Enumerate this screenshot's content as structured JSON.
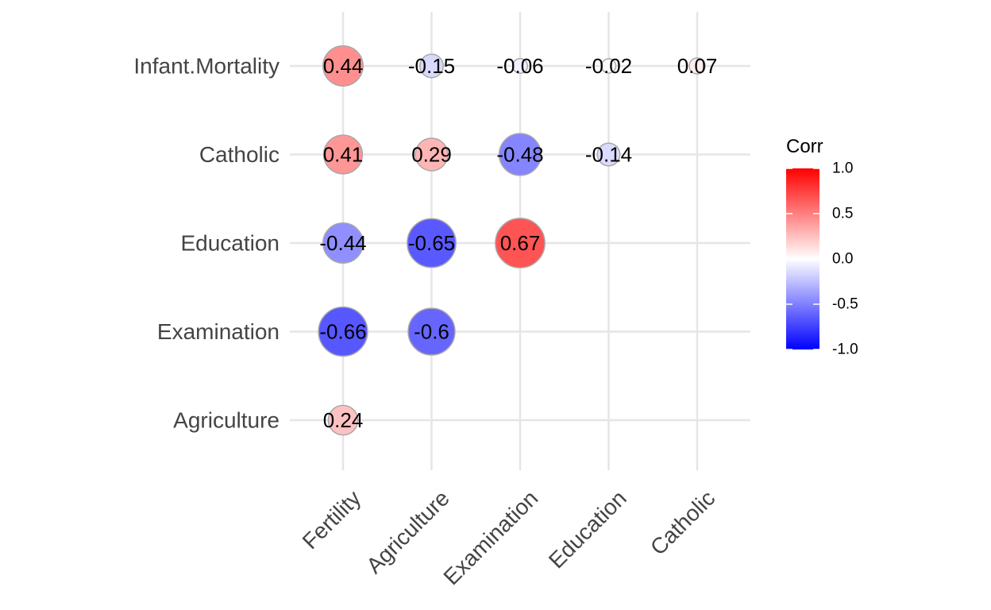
{
  "chart_data": {
    "type": "heatmap",
    "subtype": "correlation circles (lower triangle)",
    "x_categories": [
      "Fertility",
      "Agriculture",
      "Examination",
      "Education",
      "Catholic"
    ],
    "y_categories": [
      "Agriculture",
      "Examination",
      "Education",
      "Catholic",
      "Infant.Mortality"
    ],
    "cells": [
      {
        "x": "Fertility",
        "y": "Agriculture",
        "value": 0.24,
        "label": "0.24"
      },
      {
        "x": "Fertility",
        "y": "Examination",
        "value": -0.66,
        "label": "-0.66"
      },
      {
        "x": "Agriculture",
        "y": "Examination",
        "value": -0.6,
        "label": "-0.6"
      },
      {
        "x": "Fertility",
        "y": "Education",
        "value": -0.44,
        "label": "-0.44"
      },
      {
        "x": "Agriculture",
        "y": "Education",
        "value": -0.65,
        "label": "-0.65"
      },
      {
        "x": "Examination",
        "y": "Education",
        "value": 0.67,
        "label": "0.67"
      },
      {
        "x": "Fertility",
        "y": "Catholic",
        "value": 0.41,
        "label": "0.41"
      },
      {
        "x": "Agriculture",
        "y": "Catholic",
        "value": 0.29,
        "label": "0.29"
      },
      {
        "x": "Examination",
        "y": "Catholic",
        "value": -0.48,
        "label": "-0.48"
      },
      {
        "x": "Education",
        "y": "Catholic",
        "value": -0.14,
        "label": "-0.14"
      },
      {
        "x": "Fertility",
        "y": "Infant.Mortality",
        "value": 0.44,
        "label": "0.44"
      },
      {
        "x": "Agriculture",
        "y": "Infant.Mortality",
        "value": -0.15,
        "label": "-0.15"
      },
      {
        "x": "Examination",
        "y": "Infant.Mortality",
        "value": -0.06,
        "label": "-0.06"
      },
      {
        "x": "Education",
        "y": "Infant.Mortality",
        "value": -0.02,
        "label": "-0.02"
      },
      {
        "x": "Catholic",
        "y": "Infant.Mortality",
        "value": 0.07,
        "label": "0.07"
      }
    ],
    "legend": {
      "title": "Corr",
      "ticks": [
        "1.0",
        "0.5",
        "0.0",
        "-0.5",
        "-1.0"
      ],
      "range": [
        -1,
        1
      ],
      "placement": "right"
    },
    "colors": {
      "low": "#0000FF",
      "mid": "#FFFFFF",
      "high": "#FF0000"
    },
    "grid": true
  }
}
